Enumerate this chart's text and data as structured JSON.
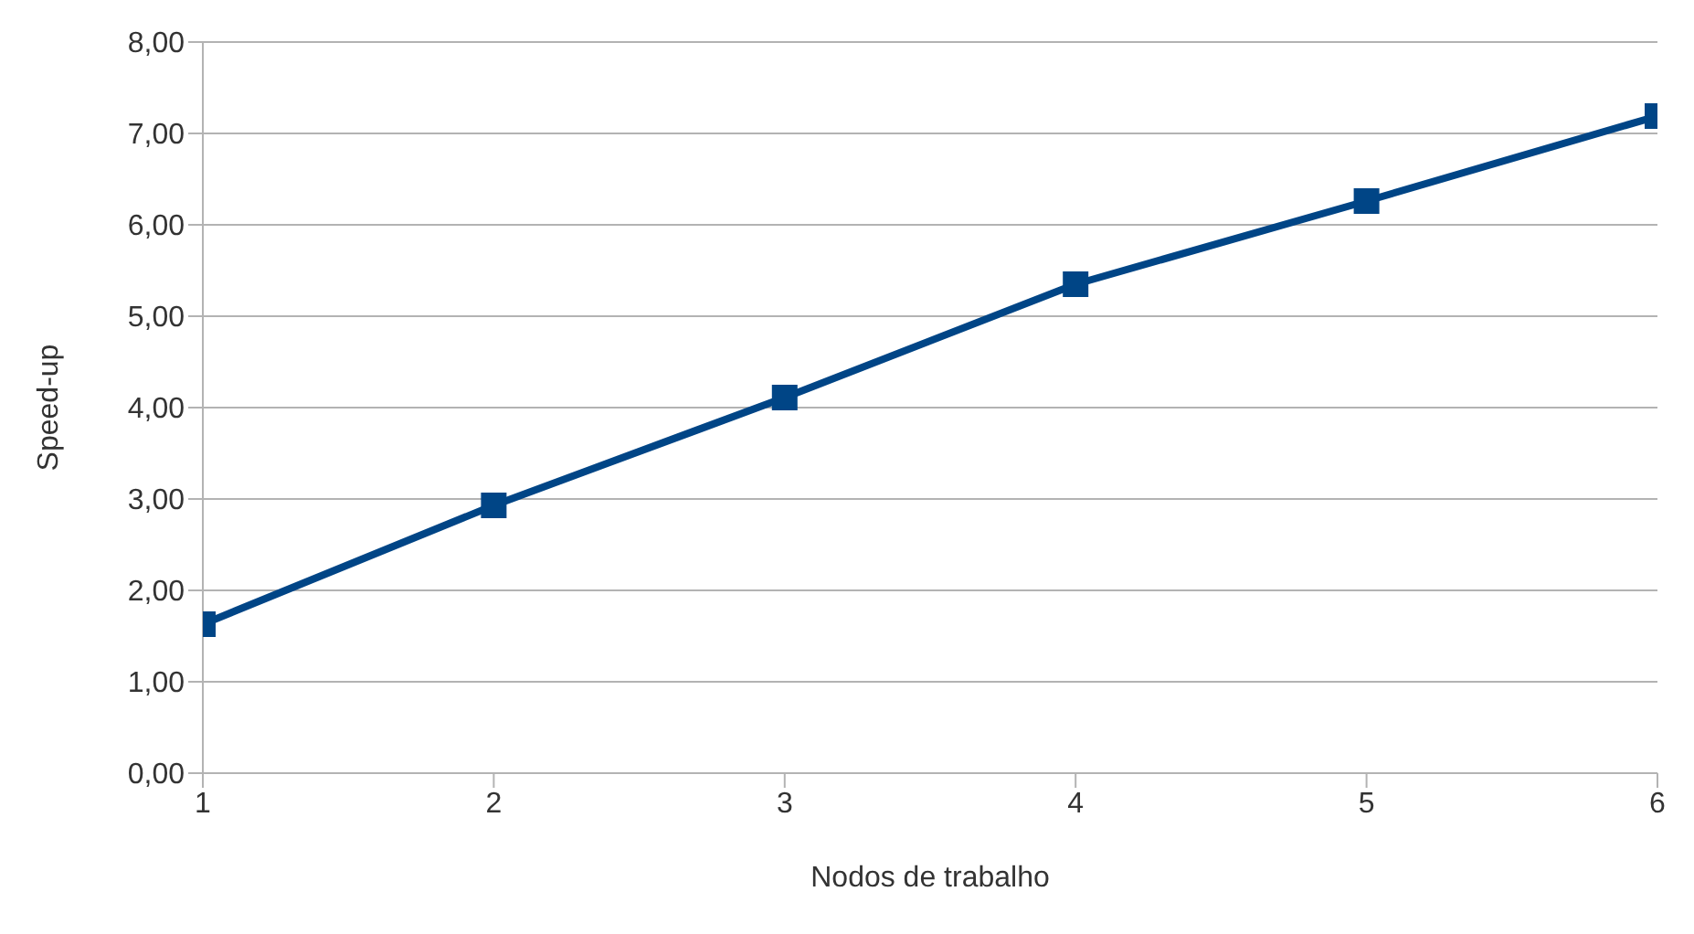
{
  "chart_data": {
    "type": "line",
    "xlabel": "Nodos de trabalho",
    "ylabel": "Speed-up",
    "x": [
      1,
      2,
      3,
      4,
      5,
      6
    ],
    "series": [
      {
        "color": "#004586",
        "values": [
          1.63,
          2.93,
          4.11,
          5.35,
          6.26,
          7.19
        ]
      }
    ],
    "xlim": [
      1,
      6
    ],
    "xticks": [
      1,
      2,
      3,
      4,
      5,
      6
    ],
    "ylim": [
      0,
      8
    ],
    "yticks": [
      {
        "value": 0,
        "label": "0,00"
      },
      {
        "value": 1,
        "label": "1,00"
      },
      {
        "value": 2,
        "label": "2,00"
      },
      {
        "value": 3,
        "label": "3,00"
      },
      {
        "value": 4,
        "label": "4,00"
      },
      {
        "value": 5,
        "label": "5,00"
      },
      {
        "value": 6,
        "label": "6,00"
      },
      {
        "value": 7,
        "label": "7,00"
      },
      {
        "value": 8,
        "label": "8,00"
      }
    ],
    "grid": "y",
    "marker": "square",
    "line_style": "solid",
    "legend": false
  }
}
